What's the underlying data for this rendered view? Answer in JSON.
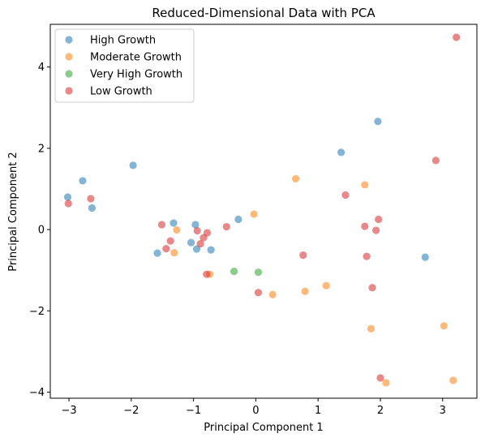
{
  "chart_data": {
    "type": "scatter",
    "title": "Reduced-Dimensional Data with PCA",
    "xlabel": "Principal Component 1",
    "ylabel": "Principal Component 2",
    "xlim": [
      -3.3,
      3.55
    ],
    "ylim": [
      -4.15,
      5.05
    ],
    "xticks": [
      -3,
      -2,
      -1,
      0,
      1,
      2,
      3
    ],
    "yticks": [
      -4,
      -2,
      0,
      2,
      4
    ],
    "grid": false,
    "legend_position": "upper-left",
    "series": [
      {
        "name": "High Growth",
        "color": "#1f77b4",
        "points": [
          [
            -2.78,
            1.2
          ],
          [
            -1.97,
            1.58
          ],
          [
            -3.02,
            0.8
          ],
          [
            -2.63,
            0.53
          ],
          [
            -1.32,
            0.16
          ],
          [
            -0.97,
            0.12
          ],
          [
            -0.28,
            0.25
          ],
          [
            -1.58,
            -0.58
          ],
          [
            -1.04,
            -0.32
          ],
          [
            -0.72,
            -0.5
          ],
          [
            2.72,
            -0.68
          ],
          [
            1.96,
            2.66
          ],
          [
            1.37,
            1.9
          ],
          [
            -0.95,
            -0.48
          ]
        ]
      },
      {
        "name": "Moderate Growth",
        "color": "#ff7f0e",
        "points": [
          [
            0.64,
            1.25
          ],
          [
            -0.03,
            0.38
          ],
          [
            -1.31,
            -0.57
          ],
          [
            -0.74,
            -1.1
          ],
          [
            0.27,
            -1.6
          ],
          [
            0.79,
            -1.52
          ],
          [
            1.13,
            -1.38
          ],
          [
            1.85,
            -2.44
          ],
          [
            3.02,
            -2.37
          ],
          [
            2.09,
            -3.77
          ],
          [
            3.17,
            -3.71
          ],
          [
            1.75,
            1.1
          ],
          [
            -1.27,
            -0.01
          ]
        ]
      },
      {
        "name": "Very High Growth",
        "color": "#2ca02c",
        "points": [
          [
            -0.35,
            -1.03
          ],
          [
            0.04,
            -1.05
          ]
        ]
      },
      {
        "name": "Low Growth",
        "color": "#d62728",
        "points": [
          [
            3.22,
            4.73
          ],
          [
            2.89,
            1.7
          ],
          [
            1.44,
            0.85
          ],
          [
            1.97,
            0.25
          ],
          [
            1.75,
            0.08
          ],
          [
            1.93,
            -0.02
          ],
          [
            1.78,
            -0.66
          ],
          [
            0.76,
            -0.63
          ],
          [
            1.87,
            -1.43
          ],
          [
            0.04,
            -1.55
          ],
          [
            2.0,
            -3.65
          ],
          [
            -2.65,
            0.76
          ],
          [
            -3.01,
            0.64
          ],
          [
            -1.51,
            0.12
          ],
          [
            -1.37,
            -0.28
          ],
          [
            -1.44,
            -0.47
          ],
          [
            -0.94,
            -0.03
          ],
          [
            -0.78,
            -0.08
          ],
          [
            -0.84,
            -0.2
          ],
          [
            -0.89,
            -0.35
          ],
          [
            -0.47,
            0.07
          ],
          [
            -0.79,
            -1.1
          ]
        ]
      }
    ]
  }
}
